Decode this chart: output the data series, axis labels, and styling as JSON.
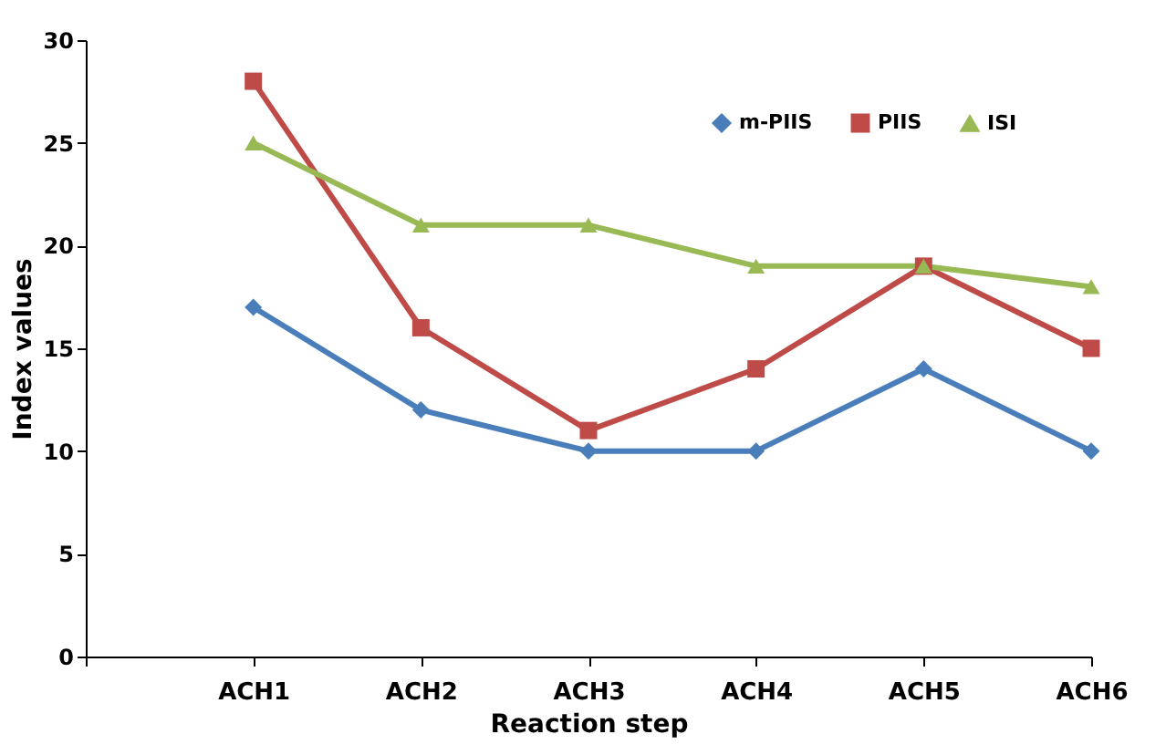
{
  "chart_data": {
    "type": "line",
    "xlabel": "Reaction step",
    "ylabel": "Index values",
    "categories": [
      null,
      "ACH1",
      "ACH2",
      "ACH3",
      "ACH4",
      "ACH5",
      "ACH6"
    ],
    "series": [
      {
        "name": "m-PIIS",
        "color": "#4a7ebb",
        "marker": "diamond",
        "values": [
          null,
          17,
          12,
          10,
          10,
          14,
          10
        ]
      },
      {
        "name": "PIIS",
        "color": "#be4b48",
        "marker": "square",
        "values": [
          null,
          28,
          16,
          11,
          14,
          19,
          15
        ]
      },
      {
        "name": "ISI",
        "color": "#98b954",
        "marker": "triangle",
        "values": [
          null,
          25,
          21,
          21,
          19,
          19,
          18
        ]
      }
    ],
    "ylim": [
      0,
      30
    ],
    "yticks": [
      0,
      5,
      10,
      15,
      20,
      25,
      30
    ],
    "grid": false,
    "legend": "top right"
  }
}
